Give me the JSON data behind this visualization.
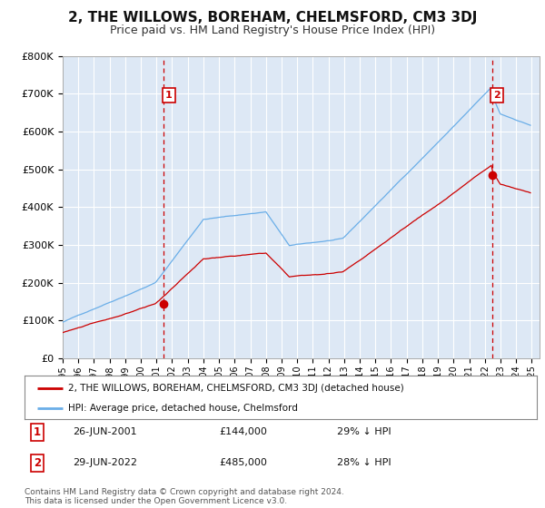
{
  "title": "2, THE WILLOWS, BOREHAM, CHELMSFORD, CM3 3DJ",
  "subtitle": "Price paid vs. HM Land Registry's House Price Index (HPI)",
  "title_fontsize": 11,
  "subtitle_fontsize": 9,
  "background_color": "#ffffff",
  "plot_bg_color": "#dde8f5",
  "grid_color": "#ffffff",
  "ylim": [
    0,
    800000
  ],
  "yticks": [
    0,
    100000,
    200000,
    300000,
    400000,
    500000,
    600000,
    700000,
    800000
  ],
  "ytick_labels": [
    "£0",
    "£100K",
    "£200K",
    "£300K",
    "£400K",
    "£500K",
    "£600K",
    "£700K",
    "£800K"
  ],
  "hpi_color": "#6aaee8",
  "price_color": "#cc0000",
  "vline_color": "#cc0000",
  "sale1_year": 2001.47,
  "sale1_price": 144000,
  "sale2_year": 2022.47,
  "sale2_price": 485000,
  "legend_line1": "2, THE WILLOWS, BOREHAM, CHELMSFORD, CM3 3DJ (detached house)",
  "legend_line2": "HPI: Average price, detached house, Chelmsford",
  "anno1_label": "1",
  "anno1_date": "26-JUN-2001",
  "anno1_price": "£144,000",
  "anno1_hpi": "29% ↓ HPI",
  "anno2_label": "2",
  "anno2_date": "29-JUN-2022",
  "anno2_price": "£485,000",
  "anno2_hpi": "28% ↓ HPI",
  "footnote": "Contains HM Land Registry data © Crown copyright and database right 2024.\nThis data is licensed under the Open Government Licence v3.0."
}
